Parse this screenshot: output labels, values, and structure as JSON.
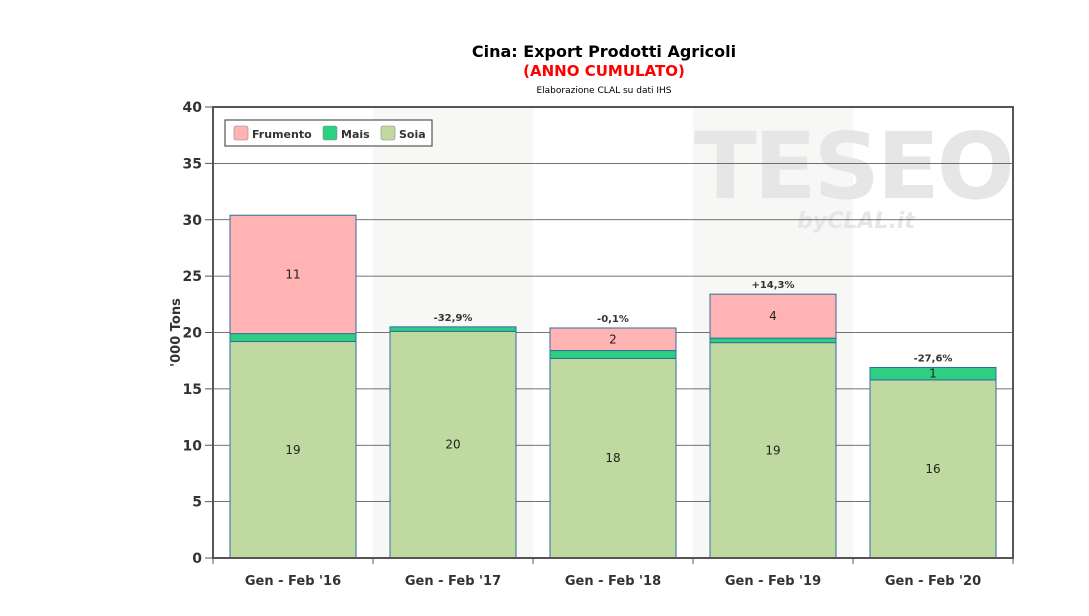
{
  "chart_data": {
    "type": "bar",
    "stacked": true,
    "title": "Cina: Export Prodotti Agricoli",
    "subtitle": "(ANNO CUMULATO)",
    "source_note": "Elaborazione CLAL su dati IHS",
    "watermark": {
      "main": "TESEO",
      "sub": "byCLAL.it"
    },
    "xlabel": "",
    "ylabel": "'000 Tons",
    "ylim": [
      0,
      40
    ],
    "yticks": [
      0,
      5,
      10,
      15,
      20,
      25,
      30,
      35,
      40
    ],
    "grid": true,
    "legend_position": "top-left",
    "categories": [
      "Gen - Feb '16",
      "Gen - Feb '17",
      "Gen - Feb '18",
      "Gen - Feb '19",
      "Gen - Feb '20"
    ],
    "series": [
      {
        "name": "Soia",
        "color": "#bfd9a1",
        "values": [
          19.2,
          20.1,
          17.7,
          19.1,
          15.8
        ],
        "labels": [
          "19",
          "20",
          "18",
          "19",
          "16"
        ]
      },
      {
        "name": "Mais",
        "color": "#2ecf83",
        "values": [
          0.7,
          0.4,
          0.7,
          0.4,
          1.1
        ],
        "labels": [
          "",
          "",
          "",
          "",
          "1"
        ]
      },
      {
        "name": "Frumento",
        "color": "#ffb3b3",
        "values": [
          10.5,
          0,
          2.0,
          3.9,
          0
        ],
        "labels": [
          "11",
          "",
          "2",
          "4",
          ""
        ]
      }
    ],
    "legend_order": [
      "Frumento",
      "Mais",
      "Soia"
    ],
    "change_labels": [
      "",
      "-32,9%",
      "-0,1%",
      "+14,3%",
      "-27,6%"
    ],
    "colors": {
      "title": "#000000",
      "subtitle": "#ff0000",
      "bar_border": "#2e6e9e",
      "axis": "#555555",
      "grid": "#444444",
      "watermark": "#e6e6e6"
    }
  }
}
